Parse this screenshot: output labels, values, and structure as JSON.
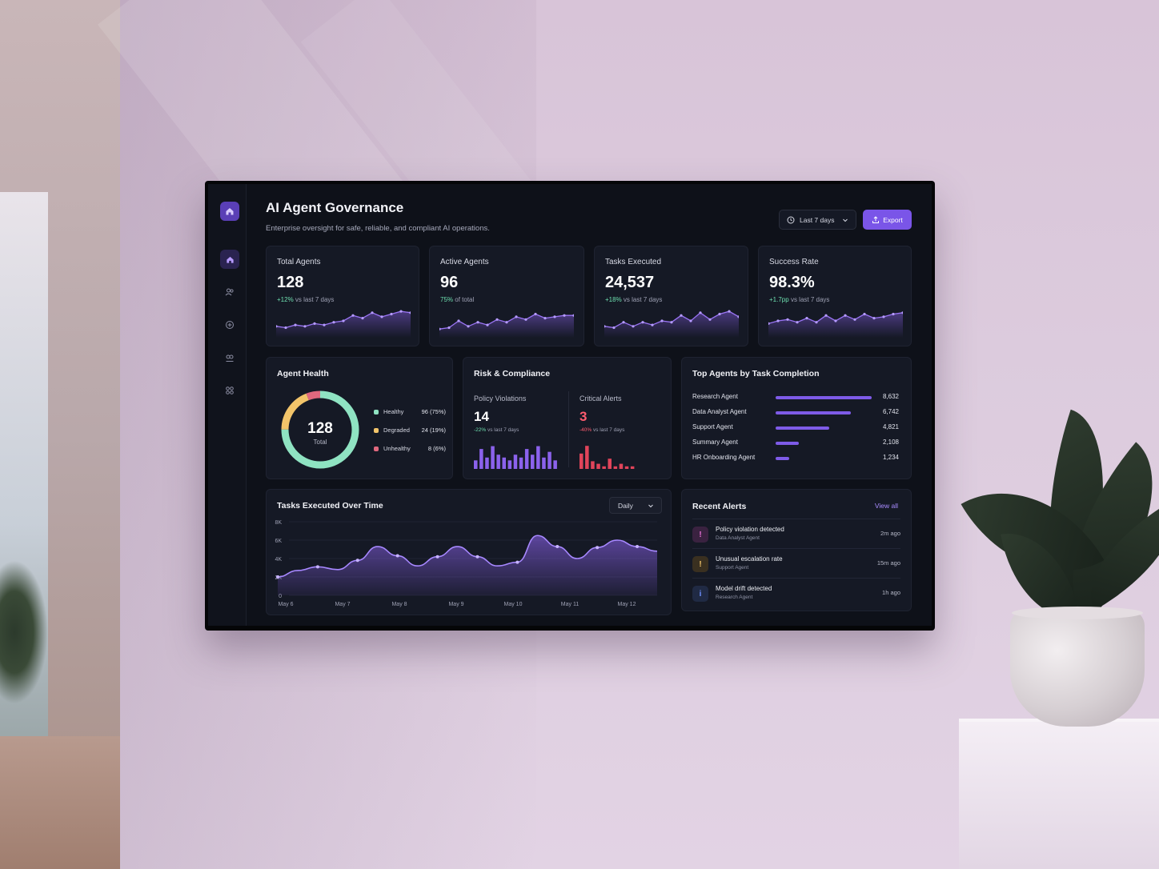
{
  "header": {
    "title": "AI Agent Governance",
    "subtitle": "Enterprise oversight for safe, reliable, and compliant AI operations.",
    "range_label": "Last 7 days",
    "export_label": "Export"
  },
  "sidebar": {
    "items": [
      {
        "icon": "home-icon",
        "active": true
      },
      {
        "icon": "users-icon",
        "active": false
      },
      {
        "icon": "shield-icon",
        "active": false
      },
      {
        "icon": "agents-icon",
        "active": false
      },
      {
        "icon": "grid-icon",
        "active": false
      }
    ]
  },
  "kpis": [
    {
      "label": "Total Agents",
      "value": "128",
      "delta": "+12%",
      "delta_suffix": "vs last 7 days",
      "spark": [
        3,
        2.5,
        3.5,
        3,
        4,
        3.5,
        4.5,
        5,
        7,
        6,
        8,
        6.5,
        7.5,
        8.5,
        8
      ]
    },
    {
      "label": "Active Agents",
      "value": "96",
      "delta": "75%",
      "delta_suffix": "of total",
      "spark": [
        2,
        2.5,
        5,
        3,
        4.5,
        3.5,
        5.5,
        4.5,
        6.5,
        5.5,
        7.5,
        6,
        6.5,
        7,
        7
      ]
    },
    {
      "label": "Tasks Executed",
      "value": "24,537",
      "delta": "+18%",
      "delta_suffix": "vs last 7 days",
      "spark": [
        3,
        2.5,
        4.5,
        3,
        4.5,
        3.5,
        5,
        4.5,
        7,
        5,
        8,
        5.5,
        7.5,
        8.5,
        6.5
      ]
    },
    {
      "label": "Success Rate",
      "value": "98.3%",
      "delta": "+1.7pp",
      "delta_suffix": "vs last 7 days",
      "spark": [
        4,
        5,
        5.5,
        4.5,
        6,
        4.5,
        7,
        5,
        7,
        5.5,
        7.5,
        6,
        6.5,
        7.5,
        8
      ]
    }
  ],
  "agent_health": {
    "title": "Agent Health",
    "total": "128",
    "total_label": "Total",
    "segments": [
      {
        "label": "Healthy",
        "value": "96 (75%)",
        "pct": 75,
        "color": "#8fe3c2"
      },
      {
        "label": "Degraded",
        "value": "24 (19%)",
        "pct": 19,
        "color": "#f2c46a"
      },
      {
        "label": "Unhealthy",
        "value": "8 (6%)",
        "pct": 6,
        "color": "#e0687e"
      }
    ]
  },
  "risk": {
    "title": "Risk & Compliance",
    "policy": {
      "label": "Policy Violations",
      "value": "14",
      "delta": "-22%",
      "delta_suffix": "vs last 7 days",
      "bars": [
        3,
        7,
        4,
        8,
        5,
        4,
        3,
        5,
        4,
        7,
        5,
        8,
        4,
        6,
        3
      ]
    },
    "critical": {
      "label": "Critical Alerts",
      "value": "3",
      "delta": "-40%",
      "delta_suffix": "vs last 7 days",
      "bars": [
        6,
        9,
        3,
        2,
        1,
        4,
        1,
        2,
        1,
        1
      ]
    },
    "colors": {
      "policy": "#8b62ec",
      "critical": "#e0445a"
    }
  },
  "top_agents": {
    "title": "Top Agents by Task Completion",
    "items": [
      {
        "name": "Research Agent",
        "value": "8,632",
        "n": 8632
      },
      {
        "name": "Data Analyst Agent",
        "value": "6,742",
        "n": 6742
      },
      {
        "name": "Support Agent",
        "value": "4,821",
        "n": 4821
      },
      {
        "name": "Summary Agent",
        "value": "2,108",
        "n": 2108
      },
      {
        "name": "HR Onboarding Agent",
        "value": "1,234",
        "n": 1234
      }
    ]
  },
  "tasks_chart": {
    "title": "Tasks Executed Over Time",
    "granularity": "Daily"
  },
  "chart_data": {
    "type": "area",
    "title": "Tasks Executed Over Time",
    "y_ticks": [
      "8K",
      "6K",
      "4K",
      "2K",
      "0"
    ],
    "x_ticks": [
      "May 6",
      "May 7",
      "May 8",
      "May 9",
      "May 10",
      "May 11",
      "May 12"
    ],
    "ylim": [
      0,
      8000
    ],
    "values": [
      2000,
      2700,
      3100,
      2800,
      3800,
      5300,
      4300,
      3200,
      4200,
      5300,
      4200,
      3200,
      3600,
      6500,
      5300,
      4000,
      5200,
      6000,
      5300,
      4800
    ],
    "color": "#8b62ec"
  },
  "alerts": {
    "title": "Recent Alerts",
    "view_all": "View all",
    "items": [
      {
        "title": "Policy violation detected",
        "agent": "Data Analyst Agent",
        "time": "2m ago",
        "icon": "!",
        "color": "#e76fd6",
        "bg": "#3a2240"
      },
      {
        "title": "Unusual escalation rate",
        "agent": "Support Agent",
        "time": "15m ago",
        "icon": "!",
        "color": "#f2c46a",
        "bg": "#3a3020"
      },
      {
        "title": "Model drift detected",
        "agent": "Research Agent",
        "time": "1h ago",
        "icon": "i",
        "color": "#6f8fff",
        "bg": "#202a44"
      }
    ]
  }
}
